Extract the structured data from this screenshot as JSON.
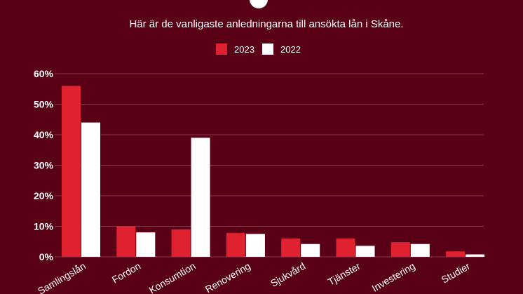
{
  "chart_data": {
    "type": "bar",
    "title": "Här är de vanligaste anledningarna till ansökta lån i Skåne.",
    "categories": [
      "Samlingslån",
      "Fordon",
      "Konsumtion",
      "Renovering",
      "Sjukvård",
      "Tjänster",
      "Investering",
      "Studier"
    ],
    "series": [
      {
        "name": "2023",
        "color": "#e0212f",
        "values": [
          56,
          10,
          9,
          7.8,
          6,
          6,
          4.8,
          1.8
        ]
      },
      {
        "name": "2022",
        "color": "#ffffff",
        "values": [
          44,
          8,
          39,
          7.5,
          4.2,
          3.6,
          4.2,
          0.8
        ]
      }
    ],
    "yticks": [
      "0%",
      "10%",
      "20%",
      "30%",
      "40%",
      "50%",
      "60%"
    ],
    "ylim": [
      0,
      60
    ],
    "grid": true,
    "legend": "top-center",
    "colors": {
      "background": "#5a0016",
      "text": "#ffffff",
      "grid": "#8a3a4c"
    }
  }
}
